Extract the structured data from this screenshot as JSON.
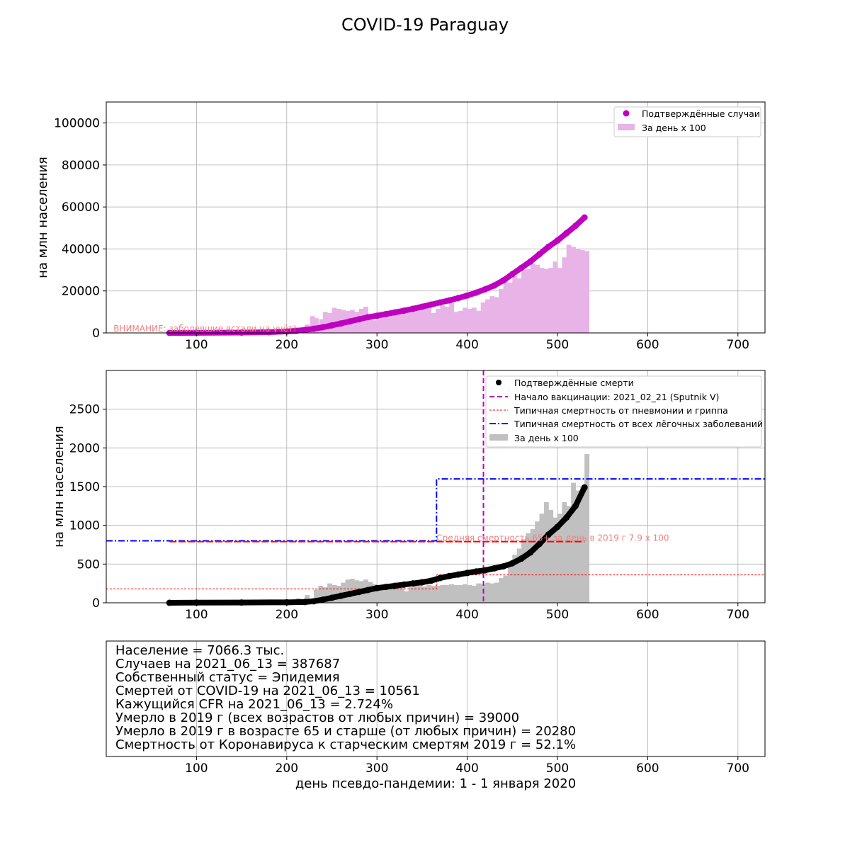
{
  "figure": {
    "title": "COVID-19 Paraguay"
  },
  "chart_data": [
    {
      "type": "scatter",
      "panel": "cases",
      "ylabel": "на млн населения",
      "xlim": [
        0,
        730
      ],
      "ylim": [
        0,
        110000
      ],
      "x_ticks": [
        100,
        200,
        300,
        400,
        500,
        600,
        700
      ],
      "y_ticks": [
        0,
        20000,
        40000,
        60000,
        80000,
        100000
      ],
      "grid": true,
      "legend_position": "top-right",
      "annotation": "ВНИМАНИЕ: заболевшие встали на учёт!",
      "series": [
        {
          "name": "Подтверждённые случаи",
          "kind": "scatter",
          "color": "#bf00bf",
          "x": [
            70,
            100,
            150,
            180,
            200,
            210,
            220,
            230,
            240,
            250,
            260,
            270,
            280,
            290,
            300,
            310,
            320,
            330,
            340,
            350,
            360,
            370,
            380,
            390,
            400,
            410,
            420,
            430,
            440,
            450,
            460,
            470,
            480,
            490,
            500,
            510,
            520,
            530
          ],
          "y": [
            0,
            50,
            150,
            350,
            700,
            1000,
            1400,
            2000,
            2700,
            3600,
            4500,
            5500,
            6500,
            7500,
            8200,
            9000,
            9800,
            10600,
            11500,
            12500,
            13500,
            14500,
            15500,
            16600,
            17800,
            19200,
            20800,
            22600,
            25000,
            28000,
            31000,
            34000,
            37500,
            41000,
            44000,
            47500,
            51000,
            55000
          ]
        },
        {
          "name": "За день x 100",
          "kind": "bar",
          "color": "#e8b4e8",
          "x": [
            180,
            200,
            210,
            220,
            226,
            230,
            236,
            240,
            245,
            250,
            255,
            260,
            265,
            270,
            275,
            280,
            285,
            290,
            295,
            300,
            305,
            310,
            315,
            320,
            325,
            330,
            335,
            340,
            345,
            350,
            355,
            360,
            365,
            370,
            375,
            380,
            385,
            390,
            395,
            400,
            405,
            410,
            415,
            420,
            425,
            430,
            435,
            440,
            445,
            450,
            455,
            460,
            465,
            470,
            475,
            480,
            485,
            490,
            495,
            500,
            505,
            510,
            515,
            520,
            525,
            530
          ],
          "y": [
            1000,
            1500,
            2000,
            4000,
            8000,
            7000,
            6500,
            10000,
            9500,
            12000,
            11500,
            11000,
            10500,
            11000,
            10000,
            11500,
            12500,
            8500,
            6000,
            9500,
            9000,
            10000,
            9500,
            11000,
            10000,
            10500,
            11000,
            11500,
            12000,
            13500,
            14000,
            9500,
            11500,
            13000,
            12500,
            14500,
            10000,
            10500,
            12000,
            11500,
            12000,
            10500,
            14500,
            16000,
            17500,
            17000,
            21000,
            25000,
            24000,
            27000,
            26000,
            30000,
            30500,
            33000,
            32500,
            31000,
            30500,
            31000,
            34000,
            31000,
            36000,
            42000,
            41000,
            40000,
            39500,
            39000
          ]
        }
      ]
    },
    {
      "type": "scatter",
      "panel": "deaths",
      "ylabel": "на млн населения",
      "xlim": [
        0,
        730
      ],
      "ylim": [
        0,
        3000
      ],
      "x_ticks": [
        100,
        200,
        300,
        400,
        500,
        600,
        700
      ],
      "y_ticks": [
        0,
        500,
        1000,
        1500,
        2000,
        2500
      ],
      "grid": true,
      "legend_position": "top-right",
      "annotation": "Средняя смертность 65+ за день в 2019 г 7.9 x 100",
      "series": [
        {
          "name": "Подтверждённые смерти",
          "kind": "scatter",
          "color": "#000000",
          "x": [
            70,
            100,
            150,
            200,
            220,
            230,
            240,
            250,
            260,
            270,
            280,
            290,
            300,
            310,
            320,
            330,
            340,
            350,
            360,
            370,
            380,
            390,
            400,
            410,
            420,
            430,
            440,
            450,
            460,
            470,
            480,
            490,
            500,
            510,
            520,
            530
          ],
          "y": [
            0,
            2,
            4,
            6,
            10,
            20,
            40,
            65,
            90,
            115,
            140,
            165,
            190,
            205,
            220,
            235,
            250,
            265,
            285,
            320,
            345,
            365,
            385,
            405,
            420,
            445,
            470,
            510,
            570,
            650,
            760,
            880,
            980,
            1100,
            1250,
            1490
          ]
        },
        {
          "name": "Начало вакцинации: 2021_02_21 (Sputnik V)",
          "kind": "vline",
          "color": "#bf00bf",
          "x": 418
        },
        {
          "name": "Типичная смертность от пневмонии и гриппа",
          "kind": "step",
          "color": "#ff0000",
          "x": [
            0,
            366,
            366,
            730
          ],
          "y": [
            180,
            180,
            360,
            360
          ]
        },
        {
          "name": "Типичная смертность от всех лёгочных заболеваний",
          "kind": "step",
          "color": "#0000ff",
          "x": [
            0,
            366,
            366,
            730
          ],
          "y": [
            800,
            800,
            1600,
            1600
          ]
        },
        {
          "name": "Средняя смертность 65+",
          "kind": "segment",
          "color": "#ff0000",
          "x": [
            70,
            530
          ],
          "y": [
            790,
            790
          ]
        },
        {
          "name": "За день x 100",
          "kind": "bar",
          "color": "#c0c0c0",
          "x": [
            200,
            210,
            220,
            230,
            235,
            240,
            245,
            250,
            255,
            260,
            265,
            270,
            275,
            280,
            285,
            290,
            295,
            300,
            305,
            310,
            315,
            320,
            325,
            330,
            335,
            340,
            345,
            350,
            355,
            360,
            365,
            370,
            375,
            380,
            385,
            390,
            395,
            400,
            405,
            410,
            415,
            420,
            425,
            430,
            435,
            440,
            445,
            450,
            455,
            460,
            465,
            470,
            475,
            480,
            485,
            490,
            495,
            500,
            505,
            510,
            515,
            520,
            525,
            530
          ],
          "y": [
            40,
            60,
            100,
            170,
            220,
            200,
            250,
            230,
            220,
            260,
            300,
            310,
            290,
            280,
            300,
            270,
            240,
            230,
            200,
            220,
            230,
            210,
            230,
            150,
            200,
            220,
            230,
            210,
            230,
            220,
            220,
            230,
            230,
            240,
            230,
            230,
            240,
            230,
            220,
            250,
            240,
            260,
            250,
            260,
            320,
            350,
            470,
            620,
            700,
            820,
            900,
            950,
            1050,
            1150,
            1300,
            1200,
            1100,
            1150,
            1300,
            1250,
            1550,
            1450,
            1500,
            1920
          ]
        }
      ]
    }
  ],
  "info_panel": {
    "lines": [
      "Население = 7066.3 тыс.",
      "Случаев на 2021_06_13 = 387687",
      "Собственный статус = Эпидемия",
      "Смертей от COVID-19 на 2021_06_13 = 10561",
      "Кажущийся CFR на 2021_06_13 = 2.724%",
      "Умерло в 2019 г (всех возрастов от любых причин) = 39000",
      "Умерло в 2019 г в возрасте 65 и старше (от любых причин) = 20280",
      "Смертность от Коронавируса к старческим смертям 2019 г = 52.1%"
    ],
    "x_ticks": [
      100,
      200,
      300,
      400,
      500,
      600,
      700
    ],
    "xlabel": "день псевдо-пандемии: 1 - 1 января 2020"
  }
}
